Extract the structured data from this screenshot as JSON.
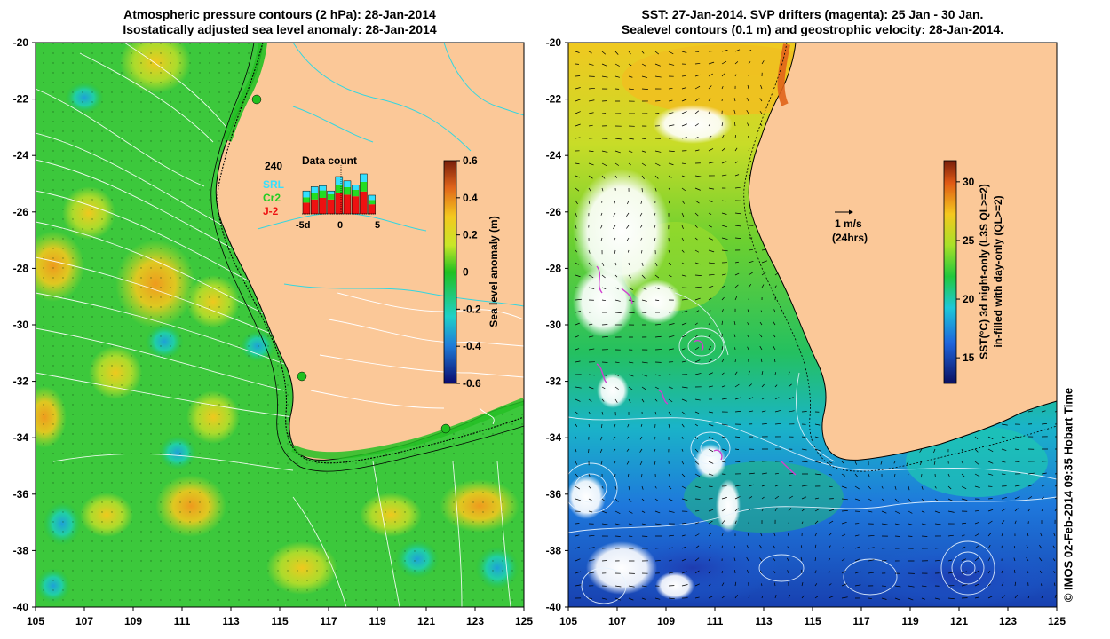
{
  "left_panel": {
    "title_line1": "Atmospheric pressure contours (2 hPa): 28-Jan-2014",
    "title_line2": "Isostatically adjusted sea level anomaly: 28-Jan-2014",
    "colorbar_label": "Sea level anomaly (m)",
    "colorbar_ticks": [
      "0.6",
      "0.4",
      "0.2",
      "0",
      "-0.2",
      "-0.4",
      "-0.6"
    ],
    "inset": {
      "title": "Data count",
      "max_label": "240",
      "legend": [
        {
          "label": "SRL",
          "color": "#33e0ff"
        },
        {
          "label": "Cr2",
          "color": "#22dd22"
        },
        {
          "label": "J-2",
          "color": "#ee1111"
        }
      ],
      "x_ticks": [
        "-5d",
        "0",
        "5"
      ]
    }
  },
  "right_panel": {
    "title_line1": "SST: 27-Jan-2014. SVP drifters (magenta): 25 Jan - 30 Jan.",
    "title_line2": "Sealevel contours (0.1 m) and geostrophic velocity: 28-Jan-2014.",
    "colorbar_label_line1": "SST(°C) 3d night-only (L3S QL>=2)",
    "colorbar_label_line2": "in-filled with day-only (QL>=2)",
    "colorbar_ticks": [
      "30",
      "25",
      "20",
      "15"
    ],
    "scale_arrow_label1": "1 m/s",
    "scale_arrow_label2": "(24hrs)"
  },
  "axes": {
    "y_ticks": [
      "-20",
      "-22",
      "-24",
      "-26",
      "-28",
      "-30",
      "-32",
      "-34",
      "-36",
      "-38",
      "-40"
    ],
    "x_ticks": [
      "105",
      "107",
      "109",
      "111",
      "113",
      "115",
      "117",
      "119",
      "121",
      "123",
      "125"
    ]
  },
  "credit": "© IMOS 02-Feb-2014 09:35 Hobart Time",
  "colors": {
    "land": "#fbc898",
    "coast": "#000000",
    "sla_base": "#3cc83c",
    "sst_warm": "#f0c81e",
    "sst_cool": "#1e6ee6",
    "drifter": "#d040d0"
  }
}
